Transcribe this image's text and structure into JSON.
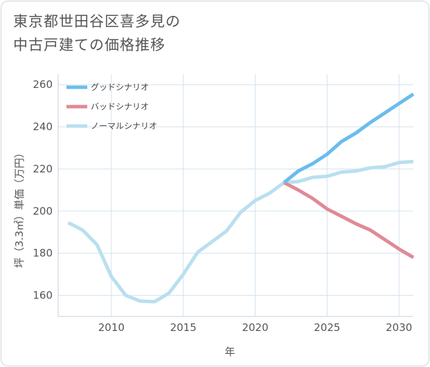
{
  "title_lines": [
    "東京都世田谷区喜多見の",
    "中古戸建ての価格推移"
  ],
  "chart_data": {
    "type": "line",
    "xlabel": "年",
    "ylabel": "坪（3.3㎡）単価（万円）",
    "xlim": [
      2006.3,
      2031
    ],
    "ylim": [
      150,
      265
    ],
    "x_ticks": [
      2010,
      2015,
      2020,
      2025,
      2030
    ],
    "y_ticks": [
      160,
      180,
      200,
      220,
      240,
      260
    ],
    "grid": true,
    "legend_position": "top-left",
    "series": [
      {
        "name": "グッドシナリオ",
        "color": "#6bbcec",
        "x": [
          2022,
          2023,
          2024,
          2025,
          2026,
          2027,
          2028,
          2029,
          2030,
          2031
        ],
        "values": [
          213.5,
          219,
          222.5,
          227,
          233,
          237,
          242,
          246.5,
          251,
          255.5
        ]
      },
      {
        "name": "バッドシナリオ",
        "color": "#e08a96",
        "x": [
          2022,
          2023,
          2024,
          2025,
          2026,
          2027,
          2028,
          2029,
          2030,
          2031
        ],
        "values": [
          213.5,
          210,
          206,
          201,
          197.5,
          194,
          191,
          186.5,
          182,
          178
        ]
      },
      {
        "name": "ノーマルシナリオ",
        "color": "#b9dff0",
        "x": [
          2007,
          2008,
          2009,
          2010,
          2011,
          2012,
          2013,
          2014,
          2015,
          2016,
          2017,
          2018,
          2019,
          2020,
          2021,
          2022,
          2023,
          2024,
          2025,
          2026,
          2027,
          2028,
          2029,
          2030,
          2031
        ],
        "values": [
          194.5,
          191,
          184,
          169,
          160,
          157.3,
          157,
          161,
          170,
          180.5,
          185.5,
          190.5,
          199.5,
          205,
          208.5,
          213.5,
          214,
          216,
          216.5,
          218.5,
          219,
          220.5,
          221,
          223,
          223.5
        ]
      }
    ]
  }
}
